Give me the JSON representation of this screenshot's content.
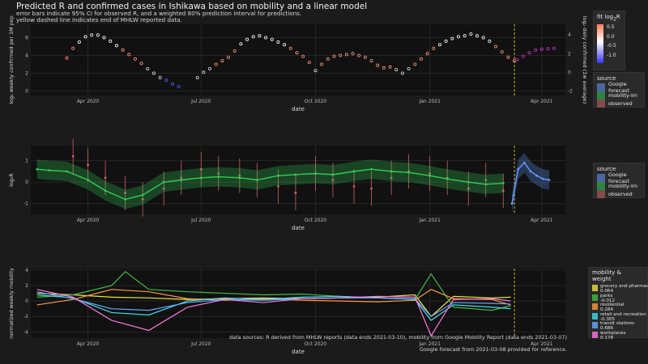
{
  "title": "Predicted R and confirmed cases in Ishikawa based on mobility and a linear model",
  "subtitle": "error bars indicate 95% CI for observed R, and a weighted 80% prediction interval for predictions.\nyellow dashed line indicates end of MHLW reported data.",
  "footer": [
    "data sources: R derived from MHLW reports (data ends 2021-03-10), mobility from Google Mobility Report (data ends 2021-03-07)",
    "Google forecast from 2021-03-08 provided for reference."
  ],
  "colors": {
    "observed": "#cc6666",
    "mobility_lm": "#33cc55",
    "google": "#6699ff",
    "forecast_magenta": "#cc33cc",
    "vline": "#cccc33",
    "panel_bg": "#111111",
    "grid": "#2b2b2b"
  },
  "legend_top": {
    "title_html": "fit log₂R",
    "ticks": [
      "0.5",
      "0.0",
      "-0.5",
      "-1.0"
    ],
    "source_title": "source",
    "source_items": [
      "Google forecast",
      "mobility-lm",
      "observed"
    ]
  },
  "legend_mid": {
    "source_title": "source",
    "source_items": [
      "Google forecast",
      "mobility-lm",
      "observed"
    ]
  },
  "legend_bottom": {
    "title": "mobility &\nweight",
    "items": [
      {
        "name": "grocery and pharmacy",
        "weight": "0.064",
        "color": "#f0e442"
      },
      {
        "name": "parks",
        "weight": "-0.012",
        "color": "#44bb44"
      },
      {
        "name": "residential",
        "weight": "0.284",
        "color": "#ff9a3c"
      },
      {
        "name": "retail and recreation",
        "weight": "-0.305",
        "color": "#44ddee"
      },
      {
        "name": "transit stations",
        "weight": "0.686",
        "color": "#66aaff"
      },
      {
        "name": "workplaces",
        "weight": "0.178",
        "color": "#ff77dd"
      }
    ]
  },
  "chart_data": [
    {
      "type": "scatter",
      "id": "cases",
      "xlabel": "date",
      "ylabel": "log₂ weekly confirmed per 1M pop",
      "y2label": "log₂ daily confirmed (1w average)",
      "x_ticks": [
        "Apr 2020",
        "Jul 2020",
        "Oct 2020",
        "Jan 2021",
        "Apr 2021"
      ],
      "x_range": [
        "2020-02-15",
        "2021-04-20"
      ],
      "y_ticks": [
        "0",
        "2",
        "4",
        "6"
      ],
      "y2_ticks": [
        "-2",
        "0",
        "2",
        "4"
      ],
      "ylim": [
        -0.5,
        7.5
      ],
      "vline_date": "2021-03-10",
      "series": [
        {
          "name": "observed",
          "x": [
            "2020-03-15",
            "2020-03-20",
            "2020-03-25",
            "2020-03-30",
            "2020-04-04",
            "2020-04-09",
            "2020-04-14",
            "2020-04-19",
            "2020-04-24",
            "2020-04-29",
            "2020-05-04",
            "2020-05-09",
            "2020-05-14",
            "2020-05-19",
            "2020-05-24",
            "2020-05-29",
            "2020-06-03",
            "2020-06-08",
            "2020-06-13",
            "2020-06-28",
            "2020-07-03",
            "2020-07-08",
            "2020-07-13",
            "2020-07-18",
            "2020-07-23",
            "2020-07-28",
            "2020-08-02",
            "2020-08-07",
            "2020-08-12",
            "2020-08-17",
            "2020-08-22",
            "2020-08-27",
            "2020-09-01",
            "2020-09-06",
            "2020-09-11",
            "2020-09-16",
            "2020-09-21",
            "2020-09-26",
            "2020-10-01",
            "2020-10-06",
            "2020-10-11",
            "2020-10-16",
            "2020-10-21",
            "2020-10-26",
            "2020-10-31",
            "2020-11-05",
            "2020-11-10",
            "2020-11-15",
            "2020-11-20",
            "2020-11-25",
            "2020-11-30",
            "2020-12-05",
            "2020-12-10",
            "2020-12-15",
            "2020-12-20",
            "2020-12-25",
            "2020-12-30",
            "2021-01-04",
            "2021-01-09",
            "2021-01-14",
            "2021-01-19",
            "2021-01-24",
            "2021-01-29",
            "2021-02-03",
            "2021-02-08",
            "2021-02-13",
            "2021-02-18",
            "2021-02-23",
            "2021-02-28",
            "2021-03-05",
            "2021-03-10"
          ],
          "y": [
            3.7,
            4.8,
            5.5,
            6.1,
            6.3,
            6.3,
            6.0,
            5.6,
            5.1,
            4.6,
            4.1,
            3.6,
            3.1,
            2.5,
            2.0,
            1.5,
            1.2,
            0.8,
            0.5,
            1.5,
            2.1,
            2.5,
            3.0,
            3.4,
            3.8,
            4.5,
            5.3,
            5.8,
            6.1,
            6.2,
            6.0,
            5.8,
            5.5,
            5.2,
            4.8,
            4.3,
            3.9,
            3.2,
            2.3,
            3.0,
            3.6,
            3.9,
            4.0,
            4.1,
            4.2,
            4.0,
            3.8,
            3.4,
            2.9,
            2.6,
            2.7,
            2.4,
            2.0,
            2.5,
            3.0,
            3.6,
            4.2,
            4.8,
            5.2,
            5.6,
            5.9,
            6.1,
            6.2,
            6.4,
            6.2,
            6.0,
            5.6,
            5.0,
            4.4,
            3.8,
            3.4
          ]
        },
        {
          "name": "mobility-lm",
          "x": [
            "2021-03-12",
            "2021-03-17",
            "2021-03-22",
            "2021-03-27",
            "2021-04-01",
            "2021-04-06",
            "2021-04-11"
          ],
          "y": [
            3.5,
            3.9,
            4.3,
            4.6,
            4.7,
            4.75,
            4.8
          ]
        }
      ]
    },
    {
      "type": "scatter",
      "id": "r",
      "xlabel": "date",
      "ylabel": "log₂R",
      "x_ticks": [
        "Apr 2020",
        "Jul 2020",
        "Oct 2020",
        "Jan 2021",
        "Apr 2021"
      ],
      "y_ticks": [
        "-1",
        "0",
        "1"
      ],
      "ylim": [
        -1.5,
        1.7
      ],
      "vline_date": "2021-03-10",
      "series": [
        {
          "name": "observed",
          "x": [
            "2020-03-20",
            "2020-04-01",
            "2020-04-15",
            "2020-05-01",
            "2020-05-15",
            "2020-06-01",
            "2020-06-15",
            "2020-07-01",
            "2020-07-15",
            "2020-08-01",
            "2020-08-15",
            "2020-09-01",
            "2020-09-15",
            "2020-10-01",
            "2020-10-15",
            "2020-11-01",
            "2020-11-15",
            "2020-12-01",
            "2020-12-15",
            "2021-01-01",
            "2021-01-15",
            "2021-02-01",
            "2021-02-15",
            "2021-03-01"
          ],
          "y": [
            1.2,
            0.8,
            0.2,
            -0.5,
            -0.8,
            -0.3,
            0.2,
            0.6,
            0.4,
            0.3,
            0.1,
            -0.2,
            -0.5,
            0.4,
            0.1,
            -0.2,
            -0.3,
            0.2,
            0.5,
            0.4,
            0.2,
            -0.3,
            0.1,
            -0.4
          ]
        },
        {
          "name": "mobility-lm",
          "x": [
            "2020-02-20",
            "2020-03-01",
            "2020-03-15",
            "2020-04-01",
            "2020-04-15",
            "2020-05-01",
            "2020-05-15",
            "2020-06-01",
            "2020-06-15",
            "2020-07-01",
            "2020-07-15",
            "2020-08-01",
            "2020-08-15",
            "2020-09-01",
            "2020-09-15",
            "2020-10-01",
            "2020-10-15",
            "2020-11-01",
            "2020-11-15",
            "2020-12-01",
            "2020-12-15",
            "2021-01-01",
            "2021-01-15",
            "2021-02-01",
            "2021-02-15",
            "2021-03-01"
          ],
          "y": [
            0.6,
            0.55,
            0.5,
            0.1,
            -0.4,
            -0.8,
            -0.6,
            0.0,
            0.1,
            0.2,
            0.25,
            0.2,
            0.1,
            0.3,
            0.35,
            0.4,
            0.35,
            0.5,
            0.6,
            0.5,
            0.45,
            0.3,
            0.15,
            0.0,
            -0.1,
            -0.05
          ]
        },
        {
          "name": "Google forecast",
          "x": [
            "2021-03-08",
            "2021-03-13",
            "2021-03-18",
            "2021-03-23",
            "2021-03-28",
            "2021-04-02",
            "2021-04-07"
          ],
          "y": [
            -1.0,
            0.6,
            0.9,
            0.5,
            0.3,
            0.15,
            0.1
          ]
        }
      ]
    },
    {
      "type": "line",
      "id": "mobility",
      "xlabel": "date",
      "ylabel": "normalized weekly mobility",
      "x_ticks": [
        "Apr 2020",
        "Jul 2020",
        "Oct 2020",
        "Jan 2021",
        "Apr 2021"
      ],
      "y_ticks": [
        "-4",
        "-2",
        "0",
        "2",
        "4"
      ],
      "ylim": [
        -4.8,
        4.2
      ],
      "vline_date": "2021-03-10",
      "series": [
        {
          "name": "grocery and pharmacy",
          "x": [
            "2020-02-20",
            "2020-03-20",
            "2020-04-20",
            "2020-05-20",
            "2020-06-20",
            "2020-07-20",
            "2020-08-20",
            "2020-09-20",
            "2020-10-20",
            "2020-11-20",
            "2020-12-20",
            "2021-01-02",
            "2021-01-20",
            "2021-02-20",
            "2021-03-07"
          ],
          "y": [
            1.0,
            0.8,
            0.5,
            0.4,
            0.2,
            0.3,
            0.4,
            0.3,
            0.4,
            0.5,
            0.8,
            -2.0,
            0.6,
            0.4,
            0.5
          ]
        },
        {
          "name": "parks",
          "x": [
            "2020-02-20",
            "2020-03-20",
            "2020-04-20",
            "2020-05-01",
            "2020-05-20",
            "2020-06-20",
            "2020-07-20",
            "2020-08-20",
            "2020-09-20",
            "2020-10-20",
            "2020-11-20",
            "2020-12-20",
            "2021-01-02",
            "2021-01-20",
            "2021-02-20",
            "2021-03-07"
          ],
          "y": [
            0.5,
            0.8,
            2.0,
            3.8,
            1.5,
            1.2,
            1.0,
            0.8,
            0.9,
            0.6,
            0.4,
            0.2,
            3.5,
            -0.8,
            -1.2,
            -0.6
          ]
        },
        {
          "name": "residential",
          "x": [
            "2020-02-20",
            "2020-03-20",
            "2020-04-20",
            "2020-05-20",
            "2020-06-20",
            "2020-07-20",
            "2020-08-20",
            "2020-09-20",
            "2020-10-20",
            "2020-11-20",
            "2020-12-20",
            "2021-01-02",
            "2021-01-20",
            "2021-02-20",
            "2021-03-07"
          ],
          "y": [
            -0.5,
            0.2,
            1.5,
            1.2,
            0.3,
            0.1,
            0.3,
            0.1,
            0.0,
            -0.1,
            0.1,
            1.5,
            0.3,
            0.2,
            -0.5
          ]
        },
        {
          "name": "retail and recreation",
          "x": [
            "2020-02-20",
            "2020-03-20",
            "2020-04-20",
            "2020-05-20",
            "2020-06-20",
            "2020-07-20",
            "2020-08-20",
            "2020-09-20",
            "2020-10-20",
            "2020-11-20",
            "2020-12-20",
            "2021-01-02",
            "2021-01-20",
            "2021-02-20",
            "2021-03-07"
          ],
          "y": [
            0.8,
            0.4,
            -1.5,
            -1.8,
            0.0,
            0.4,
            0.2,
            0.5,
            0.6,
            0.4,
            0.2,
            -2.5,
            -0.5,
            -0.8,
            -1.0
          ]
        },
        {
          "name": "transit stations",
          "x": [
            "2020-02-20",
            "2020-03-20",
            "2020-04-20",
            "2020-05-20",
            "2020-06-20",
            "2020-07-20",
            "2020-08-20",
            "2020-09-20",
            "2020-10-20",
            "2020-11-20",
            "2020-12-20",
            "2021-01-02",
            "2021-01-20",
            "2021-02-20",
            "2021-03-07"
          ],
          "y": [
            1.2,
            0.3,
            -1.0,
            -1.2,
            -0.2,
            0.2,
            0.1,
            0.3,
            0.4,
            0.4,
            0.3,
            -2.0,
            -0.2,
            -0.3,
            -0.4
          ]
        },
        {
          "name": "workplaces",
          "x": [
            "2020-02-20",
            "2020-03-20",
            "2020-04-20",
            "2020-05-20",
            "2020-06-20",
            "2020-07-20",
            "2020-08-20",
            "2020-09-20",
            "2020-10-20",
            "2020-11-20",
            "2020-12-20",
            "2021-01-02",
            "2021-01-20",
            "2021-02-20",
            "2021-03-07"
          ],
          "y": [
            1.5,
            0.5,
            -2.5,
            -3.8,
            -0.8,
            0.2,
            -0.2,
            0.3,
            0.4,
            0.6,
            0.5,
            -4.5,
            0.2,
            0.3,
            0.0
          ]
        }
      ]
    }
  ]
}
